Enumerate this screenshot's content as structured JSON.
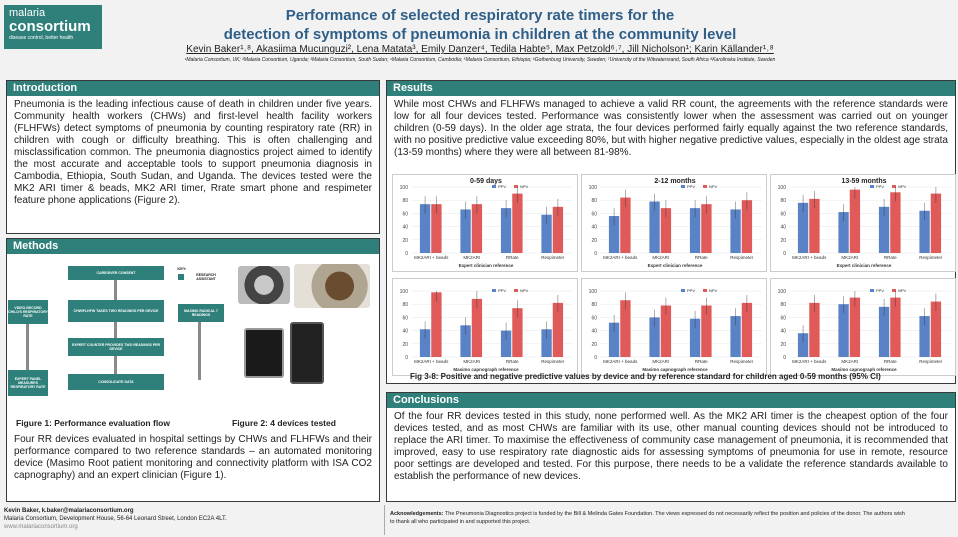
{
  "header": {
    "logo_line1": "malaria",
    "logo_line2": "consortium",
    "logo_line3": "disease control, better health",
    "title_line1": "Performance of selected respiratory rate timers for the",
    "title_line2": "detection of symptoms of pneumonia in children at the community level",
    "authors": "Kevin Baker¹˒⁸, Akasiima Mucunguzi², Lena Matata³, Emily Danzer⁴, Tedila Habte⁵, Max Petzold⁶˒⁷, Jill Nicholson¹; Karin Källander¹˒⁸",
    "affiliations": "¹Malaria Consortium, UK; ²Malaria Consortium, Uganda; ³Malaria Consortium, South Sudan; ⁴Malaria Consortium, Cambodia; ⁵Malaria Consortium, Ethiopia; ⁶Gothenburg University, Sweden; ⁷University of the Witwatersrand, South Africa ⁸Karolinska Institute, Sweden"
  },
  "intro": {
    "heading": "Introduction",
    "text": "Pneumonia is the leading infectious cause of death in children under five years. Community health workers (CHWs) and first-level health facility workers (FLHFWs) detect symptoms of pneumonia by counting respiratory rate (RR) in children with cough or difficulty breathing. This is often challenging and misclassification common. The pneumonia diagnostics project aimed to identify the most accurate and acceptable tools to support pneumonia diagnosis in Cambodia, Ethiopia, South Sudan, and Uganda. The devices tested were the MK2 ARI timer & beads, MK2 ARI timer, Rrate smart phone and respimeter feature phone applications (Figure 2)."
  },
  "methods": {
    "heading": "Methods",
    "flow": {
      "consent": "CAREGIVER CONSENT",
      "key": "KEY:",
      "research_assistant": "RESEARCH ASSISTANT",
      "video": "VIDEO-RECORD CHILD'S RESPIRATORY RATE",
      "chw": "CHW/FLHFW TAKES TWO READINGS PER DEVICE",
      "masimo": "MASIMO RADICAL 7 READINGS",
      "expert_counter": "EXPERT COUNTER PROVIDES TWO READINGS PER DEVICE",
      "expert_panel": "EXPERT PANEL MEASURES RESPIRATORY RATE",
      "consolidate": "CONSOLIDATE DATA"
    },
    "fig1_caption": "Figure 1: Performance evaluation flow",
    "fig2_caption": "Figure 2: 4 devices tested",
    "text": "Four RR devices evaluated in hospital settings by CHWs and FLHFWs and their performance compared to two reference standards – an automated monitoring device (Masimo Root patient monitoring and connectivity platform with ISA CO2 capnography) and an expert clinician (Figure 1)."
  },
  "results": {
    "heading": "Results",
    "text": "While most CHWs and FLHFWs managed to achieve a valid RR count, the agreements with the reference standards were low for all four devices tested. Performance was consistently lower when the assessment was carried out on younger children (0-59 days). In the older age strata, the four devices performed fairly equally against the two reference standards, with no positive predictive value exceeding 80%, but with higher negative predictive values, especially in the oldest age strata (13-59 months) where they were all between 81-98%.",
    "fig_caption": "Fig 3-8: Positive and negative predictive values by device and by reference standard for children aged 0-59 months (95% CI)"
  },
  "chart_data": {
    "type": "bar",
    "categories": [
      "MK2ARI + beads",
      "MK2ARI",
      "RRate",
      "Respimeter"
    ],
    "legend": [
      "PPV",
      "NPV"
    ],
    "colors": {
      "PPV": "#5a82c6",
      "NPV": "#e05a5a"
    },
    "ylim": [
      0,
      100
    ],
    "yticks": [
      0,
      20,
      40,
      60,
      80,
      100
    ],
    "panels": [
      {
        "title": "0-59 days",
        "xlabel": "Expert clinician reference",
        "series": [
          {
            "name": "PPV",
            "values": [
              74,
              66,
              68,
              58
            ]
          },
          {
            "name": "NPV",
            "values": [
              74,
              74,
              90,
              70
            ]
          }
        ]
      },
      {
        "title": "2-12 months",
        "xlabel": "Expert clinician reference",
        "series": [
          {
            "name": "PPV",
            "values": [
              56,
              78,
              68,
              66
            ]
          },
          {
            "name": "NPV",
            "values": [
              84,
              68,
              74,
              80
            ]
          }
        ]
      },
      {
        "title": "13-59 months",
        "xlabel": "Expert clinician reference",
        "series": [
          {
            "name": "PPV",
            "values": [
              76,
              62,
              70,
              64
            ]
          },
          {
            "name": "NPV",
            "values": [
              82,
              96,
              92,
              90
            ]
          }
        ]
      },
      {
        "title": "",
        "xlabel": "Masimo capnograph reference",
        "series": [
          {
            "name": "PPV",
            "values": [
              42,
              48,
              40,
              42
            ]
          },
          {
            "name": "NPV",
            "values": [
              98,
              88,
              74,
              82
            ]
          }
        ]
      },
      {
        "title": "",
        "xlabel": "Masimo capnograph reference",
        "series": [
          {
            "name": "PPV",
            "values": [
              52,
              60,
              58,
              62
            ]
          },
          {
            "name": "NPV",
            "values": [
              86,
              78,
              78,
              82
            ]
          }
        ]
      },
      {
        "title": "",
        "xlabel": "Masimo capnograph reference",
        "series": [
          {
            "name": "PPV",
            "values": [
              36,
              80,
              76,
              62
            ]
          },
          {
            "name": "NPV",
            "values": [
              82,
              90,
              90,
              84
            ]
          }
        ]
      }
    ]
  },
  "conclusions": {
    "heading": "Conclusions",
    "text": "Of the four RR devices tested in this study, none performed well. As the MK2 ARI timer is the cheapest option of the four devices tested, and as most CHWs are familiar with its use, other manual counting devices should not be introduced to replace the ARI timer. To maximise the effectiveness of community case management of pneumonia, it is recommended that improved, easy to use respiratory rate diagnostic aids for assessing symptoms of pneumonia for use in remote, resource poor settings are developed and tested. For this purpose, there needs to be a validate the reference standards available to establish the performance of new devices."
  },
  "footer": {
    "contact": "Kevin Baker, k.baker@malariaconsortium.org",
    "address": "Malaria Consortium, Development House, 56-64 Leonard Street, London EC2A 4LT.",
    "website": "www.malariaconsortium.org",
    "ack_label": "Acknowledgements:",
    "ack": "The Pneumonia Diagnostics project is funded by the Bill & Melinda Gates Foundation. The views expressed do not necessarily reflect the position and policies of the donor. The authors wish to thank all who participated in and supported this project."
  }
}
